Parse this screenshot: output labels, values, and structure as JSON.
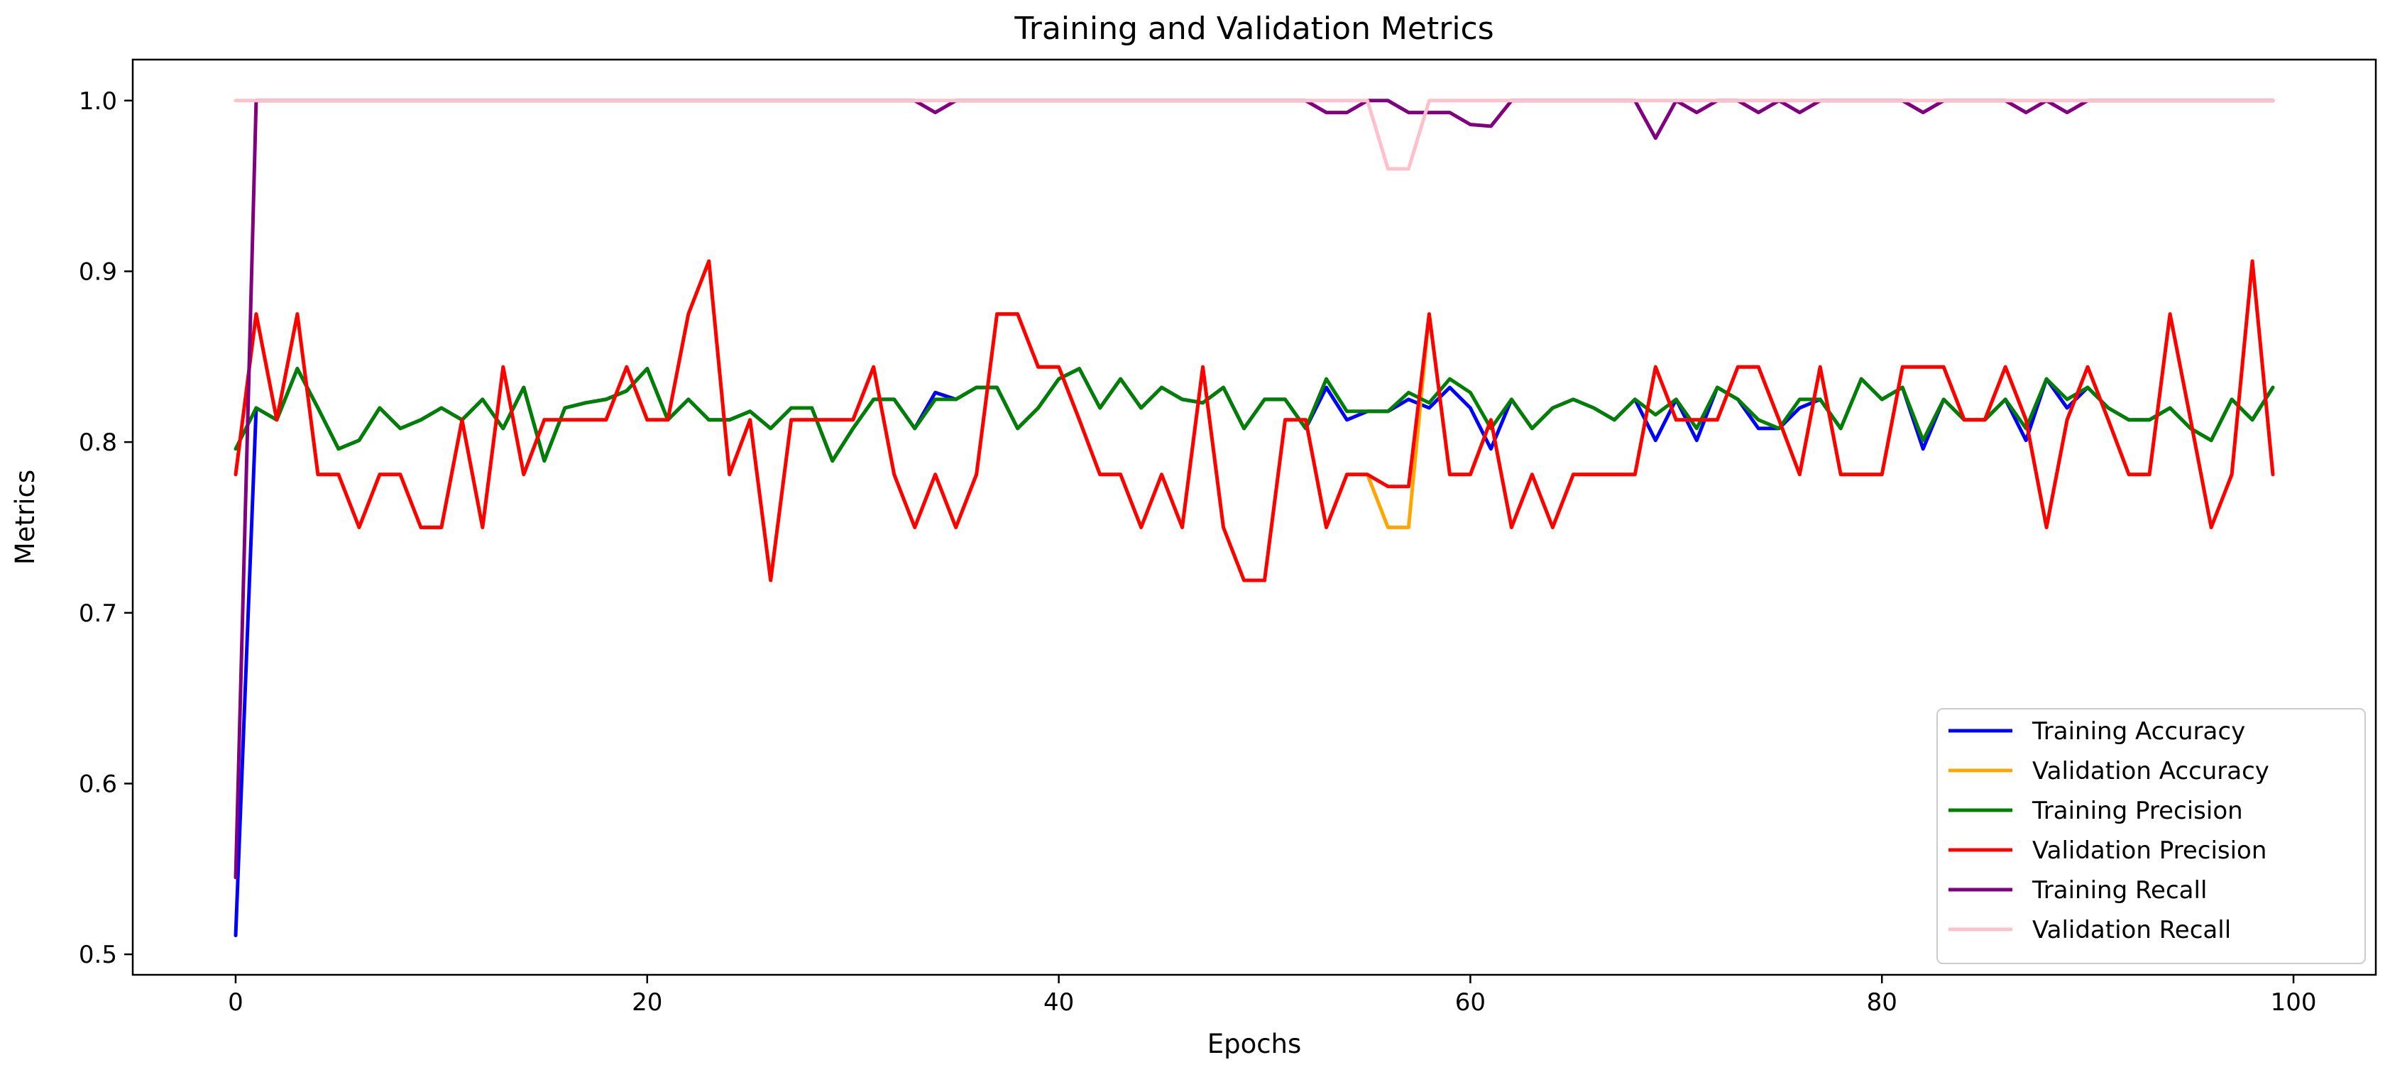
{
  "chart_data": {
    "type": "line",
    "title": "Training and Validation Metrics",
    "xlabel": "Epochs",
    "ylabel": "Metrics",
    "xlim": [
      -5,
      104
    ],
    "ylim": [
      0.488,
      1.024
    ],
    "xticks": [
      0,
      20,
      40,
      60,
      80,
      100
    ],
    "yticks": [
      0.5,
      0.6,
      0.7,
      0.8,
      0.9,
      1.0
    ],
    "xtick_labels": [
      "0",
      "20",
      "40",
      "60",
      "80",
      "100"
    ],
    "ytick_labels": [
      "0.5",
      "0.6",
      "0.7",
      "0.8",
      "0.9",
      "1.0"
    ],
    "grid": false,
    "legend_position": "bottom-right",
    "x": [
      0,
      1,
      2,
      3,
      4,
      5,
      6,
      7,
      8,
      9,
      10,
      11,
      12,
      13,
      14,
      15,
      16,
      17,
      18,
      19,
      20,
      21,
      22,
      23,
      24,
      25,
      26,
      27,
      28,
      29,
      30,
      31,
      32,
      33,
      34,
      35,
      36,
      37,
      38,
      39,
      40,
      41,
      42,
      43,
      44,
      45,
      46,
      47,
      48,
      49,
      50,
      51,
      52,
      53,
      54,
      55,
      56,
      57,
      58,
      59,
      60,
      61,
      62,
      63,
      64,
      65,
      66,
      67,
      68,
      69,
      70,
      71,
      72,
      73,
      74,
      75,
      76,
      77,
      78,
      79,
      80,
      81,
      82,
      83,
      84,
      85,
      86,
      87,
      88,
      89,
      90,
      91,
      92,
      93,
      94,
      95,
      96,
      97,
      98,
      99
    ],
    "series": [
      {
        "name": "Training Accuracy",
        "color": "#0000ff",
        "values": [
          0.511,
          0.82,
          0.813,
          0.843,
          0.82,
          0.796,
          0.801,
          0.82,
          0.808,
          0.813,
          0.82,
          0.813,
          0.825,
          0.808,
          0.832,
          0.789,
          0.82,
          0.823,
          0.825,
          0.83,
          0.843,
          0.813,
          0.825,
          0.813,
          0.813,
          0.818,
          0.808,
          0.82,
          0.82,
          0.789,
          0.808,
          0.825,
          0.825,
          0.808,
          0.829,
          0.825,
          0.832,
          0.832,
          0.808,
          0.82,
          0.837,
          0.843,
          0.82,
          0.837,
          0.82,
          0.832,
          0.825,
          0.823,
          0.832,
          0.808,
          0.825,
          0.825,
          0.808,
          0.832,
          0.813,
          0.818,
          0.818,
          0.825,
          0.82,
          0.832,
          0.82,
          0.796,
          0.825,
          0.808,
          0.82,
          0.825,
          0.82,
          0.813,
          0.825,
          0.801,
          0.825,
          0.801,
          0.832,
          0.825,
          0.808,
          0.808,
          0.82,
          0.825,
          0.808,
          0.837,
          0.825,
          0.832,
          0.796,
          0.825,
          0.813,
          0.813,
          0.825,
          0.801,
          0.837,
          0.82,
          0.832,
          0.82,
          0.813,
          0.813,
          0.82,
          0.808,
          0.801,
          0.825,
          0.813,
          0.832
        ]
      },
      {
        "name": "Validation Accuracy",
        "color": "#ffa500",
        "values": [
          0.781,
          0.875,
          0.813,
          0.875,
          0.781,
          0.781,
          0.75,
          0.781,
          0.781,
          0.75,
          0.75,
          0.813,
          0.75,
          0.844,
          0.781,
          0.813,
          0.813,
          0.813,
          0.813,
          0.844,
          0.813,
          0.813,
          0.875,
          0.906,
          0.781,
          0.813,
          0.719,
          0.813,
          0.813,
          0.813,
          0.813,
          0.844,
          0.781,
          0.75,
          0.781,
          0.75,
          0.781,
          0.875,
          0.875,
          0.844,
          0.844,
          0.813,
          0.781,
          0.781,
          0.75,
          0.781,
          0.75,
          0.844,
          0.75,
          0.719,
          0.719,
          0.813,
          0.813,
          0.75,
          0.781,
          0.781,
          0.75,
          0.75,
          0.875,
          0.781,
          0.781,
          0.813,
          0.75,
          0.781,
          0.75,
          0.781,
          0.781,
          0.781,
          0.781,
          0.844,
          0.813,
          0.813,
          0.813,
          0.844,
          0.844,
          0.813,
          0.781,
          0.844,
          0.781,
          0.781,
          0.781,
          0.844,
          0.844,
          0.844,
          0.813,
          0.813,
          0.844,
          0.813,
          0.75,
          0.813,
          0.844,
          0.813,
          0.781,
          0.781,
          0.875,
          0.813,
          0.75,
          0.781,
          0.906,
          0.781
        ]
      },
      {
        "name": "Training Precision",
        "color": "#008000",
        "values": [
          0.796,
          0.82,
          0.813,
          0.843,
          0.82,
          0.796,
          0.801,
          0.82,
          0.808,
          0.813,
          0.82,
          0.813,
          0.825,
          0.808,
          0.832,
          0.789,
          0.82,
          0.823,
          0.825,
          0.83,
          0.843,
          0.813,
          0.825,
          0.813,
          0.813,
          0.818,
          0.808,
          0.82,
          0.82,
          0.789,
          0.808,
          0.825,
          0.825,
          0.808,
          0.825,
          0.825,
          0.832,
          0.832,
          0.808,
          0.82,
          0.837,
          0.843,
          0.82,
          0.837,
          0.82,
          0.832,
          0.825,
          0.823,
          0.832,
          0.808,
          0.825,
          0.825,
          0.808,
          0.837,
          0.818,
          0.818,
          0.818,
          0.829,
          0.823,
          0.837,
          0.829,
          0.808,
          0.825,
          0.808,
          0.82,
          0.825,
          0.82,
          0.813,
          0.825,
          0.816,
          0.825,
          0.808,
          0.832,
          0.825,
          0.813,
          0.808,
          0.825,
          0.825,
          0.808,
          0.837,
          0.825,
          0.832,
          0.801,
          0.825,
          0.813,
          0.813,
          0.825,
          0.808,
          0.837,
          0.825,
          0.832,
          0.82,
          0.813,
          0.813,
          0.82,
          0.808,
          0.801,
          0.825,
          0.813,
          0.832
        ]
      },
      {
        "name": "Validation Precision",
        "color": "#ff0000",
        "values": [
          0.781,
          0.875,
          0.813,
          0.875,
          0.781,
          0.781,
          0.75,
          0.781,
          0.781,
          0.75,
          0.75,
          0.813,
          0.75,
          0.844,
          0.781,
          0.813,
          0.813,
          0.813,
          0.813,
          0.844,
          0.813,
          0.813,
          0.875,
          0.906,
          0.781,
          0.813,
          0.719,
          0.813,
          0.813,
          0.813,
          0.813,
          0.844,
          0.781,
          0.75,
          0.781,
          0.75,
          0.781,
          0.875,
          0.875,
          0.844,
          0.844,
          0.813,
          0.781,
          0.781,
          0.75,
          0.781,
          0.75,
          0.844,
          0.75,
          0.719,
          0.719,
          0.813,
          0.813,
          0.75,
          0.781,
          0.781,
          0.774,
          0.774,
          0.875,
          0.781,
          0.781,
          0.813,
          0.75,
          0.781,
          0.75,
          0.781,
          0.781,
          0.781,
          0.781,
          0.844,
          0.813,
          0.813,
          0.813,
          0.844,
          0.844,
          0.813,
          0.781,
          0.844,
          0.781,
          0.781,
          0.781,
          0.844,
          0.844,
          0.844,
          0.813,
          0.813,
          0.844,
          0.813,
          0.75,
          0.813,
          0.844,
          0.813,
          0.781,
          0.781,
          0.875,
          0.813,
          0.75,
          0.781,
          0.906,
          0.781
        ]
      },
      {
        "name": "Training Recall",
        "color": "#800080",
        "values": [
          0.545,
          1.0,
          1.0,
          1.0,
          1.0,
          1.0,
          1.0,
          1.0,
          1.0,
          1.0,
          1.0,
          1.0,
          1.0,
          1.0,
          1.0,
          1.0,
          1.0,
          1.0,
          1.0,
          1.0,
          1.0,
          1.0,
          1.0,
          1.0,
          1.0,
          1.0,
          1.0,
          1.0,
          1.0,
          1.0,
          1.0,
          1.0,
          1.0,
          1.0,
          0.993,
          1.0,
          1.0,
          1.0,
          1.0,
          1.0,
          1.0,
          1.0,
          1.0,
          1.0,
          1.0,
          1.0,
          1.0,
          1.0,
          1.0,
          1.0,
          1.0,
          1.0,
          1.0,
          0.993,
          0.993,
          1.0,
          1.0,
          0.993,
          0.993,
          0.993,
          0.986,
          0.985,
          1.0,
          1.0,
          1.0,
          1.0,
          1.0,
          1.0,
          1.0,
          0.978,
          1.0,
          0.993,
          1.0,
          1.0,
          0.993,
          1.0,
          0.993,
          1.0,
          1.0,
          1.0,
          1.0,
          1.0,
          0.993,
          1.0,
          1.0,
          1.0,
          1.0,
          0.993,
          1.0,
          0.993,
          1.0,
          1.0,
          1.0,
          1.0,
          1.0,
          1.0,
          1.0,
          1.0,
          1.0,
          1.0
        ]
      },
      {
        "name": "Validation Recall",
        "color": "#ffc0cb",
        "values": [
          1.0,
          1.0,
          1.0,
          1.0,
          1.0,
          1.0,
          1.0,
          1.0,
          1.0,
          1.0,
          1.0,
          1.0,
          1.0,
          1.0,
          1.0,
          1.0,
          1.0,
          1.0,
          1.0,
          1.0,
          1.0,
          1.0,
          1.0,
          1.0,
          1.0,
          1.0,
          1.0,
          1.0,
          1.0,
          1.0,
          1.0,
          1.0,
          1.0,
          1.0,
          1.0,
          1.0,
          1.0,
          1.0,
          1.0,
          1.0,
          1.0,
          1.0,
          1.0,
          1.0,
          1.0,
          1.0,
          1.0,
          1.0,
          1.0,
          1.0,
          1.0,
          1.0,
          1.0,
          1.0,
          1.0,
          1.0,
          0.96,
          0.96,
          1.0,
          1.0,
          1.0,
          1.0,
          1.0,
          1.0,
          1.0,
          1.0,
          1.0,
          1.0,
          1.0,
          1.0,
          1.0,
          1.0,
          1.0,
          1.0,
          1.0,
          1.0,
          1.0,
          1.0,
          1.0,
          1.0,
          1.0,
          1.0,
          1.0,
          1.0,
          1.0,
          1.0,
          1.0,
          1.0,
          1.0,
          1.0,
          1.0,
          1.0,
          1.0,
          1.0,
          1.0,
          1.0,
          1.0,
          1.0,
          1.0,
          1.0
        ]
      }
    ]
  }
}
